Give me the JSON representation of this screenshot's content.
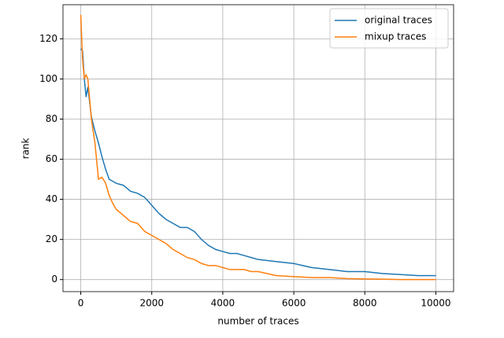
{
  "chart_data": {
    "type": "line",
    "xlabel": "number of traces",
    "ylabel": "rank",
    "x": [
      0,
      50,
      100,
      150,
      200,
      300,
      400,
      500,
      600,
      700,
      800,
      900,
      1000,
      1200,
      1400,
      1600,
      1800,
      2000,
      2200,
      2400,
      2600,
      2800,
      3000,
      3200,
      3400,
      3600,
      3800,
      4000,
      4200,
      4400,
      4600,
      4800,
      5000,
      5500,
      6000,
      6500,
      7000,
      7500,
      8000,
      8500,
      9000,
      9500,
      10000
    ],
    "series": [
      {
        "name": "original traces",
        "color": "#1f77b4",
        "values": [
          115,
          114,
          100,
          91,
          96,
          81,
          74,
          68,
          61,
          55,
          50,
          49,
          48,
          47,
          44,
          43,
          41,
          37,
          33,
          30,
          28,
          26,
          26,
          24,
          20,
          17,
          15,
          14,
          13,
          13,
          12,
          11,
          10,
          9,
          8,
          6,
          5,
          4,
          4,
          3,
          2.5,
          2,
          2
        ]
      },
      {
        "name": "mixup traces",
        "color": "#ff7f0e",
        "values": [
          132,
          110,
          100,
          102,
          100,
          80,
          68,
          50,
          51,
          48,
          42,
          38,
          35,
          32,
          29,
          28,
          24,
          22,
          20,
          18,
          15,
          13,
          11,
          10,
          8,
          7,
          7,
          6,
          5,
          5,
          5,
          4,
          4,
          2,
          1.5,
          1,
          1,
          0.5,
          0.3,
          0.2,
          0,
          0,
          0
        ]
      }
    ],
    "xlim": [
      -500,
      10500
    ],
    "ylim": [
      -6,
      137
    ],
    "xticks": [
      0,
      2000,
      4000,
      6000,
      8000,
      10000
    ],
    "yticks": [
      0,
      20,
      40,
      60,
      80,
      100,
      120
    ],
    "grid": true,
    "legend": "upper-right"
  }
}
